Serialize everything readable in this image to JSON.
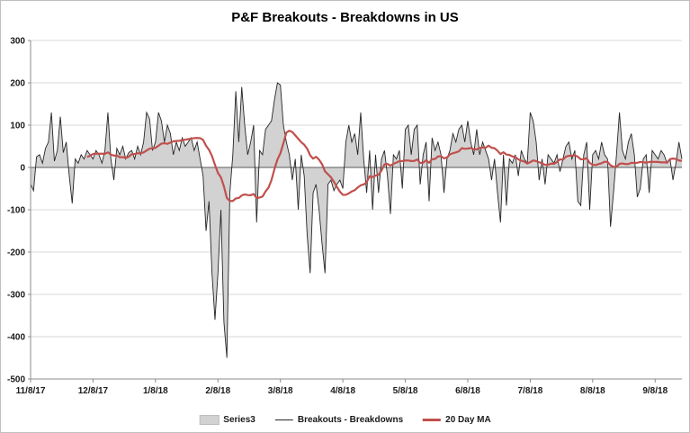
{
  "chart_data": {
    "type": "area",
    "title": "P&F Breakouts - Breakdowns in US",
    "xlabel": "",
    "ylabel": "",
    "ylim": [
      -500,
      300
    ],
    "y_ticks": [
      300,
      200,
      100,
      0,
      -100,
      -200,
      -300,
      -400,
      -500
    ],
    "grid": true,
    "legend_position": "bottom",
    "x_tick_labels": [
      "11/8/17",
      "12/8/17",
      "1/8/18",
      "2/8/18",
      "3/8/18",
      "4/8/18",
      "5/8/18",
      "6/8/18",
      "7/8/18",
      "8/8/18",
      "9/8/18"
    ],
    "x_tick_indices": [
      0,
      21,
      42,
      63,
      84,
      105,
      126,
      147,
      168,
      189,
      210
    ],
    "ma_window": 20,
    "series": [
      {
        "name": "Series3",
        "type": "area",
        "color": "#d2d2d2"
      },
      {
        "name": "Breakouts - Breakdowns",
        "type": "line",
        "color": "#262626"
      },
      {
        "name": "20 Day MA",
        "type": "line",
        "color": "#c0504d",
        "derived": "20-day moving average of Breakouts - Breakdowns"
      }
    ],
    "values": [
      -40,
      -55,
      25,
      30,
      10,
      45,
      60,
      130,
      15,
      40,
      120,
      35,
      60,
      -20,
      -85,
      20,
      10,
      30,
      20,
      40,
      30,
      20,
      40,
      30,
      10,
      40,
      130,
      20,
      -30,
      45,
      30,
      50,
      20,
      35,
      40,
      20,
      50,
      30,
      60,
      130,
      115,
      40,
      60,
      130,
      110,
      60,
      100,
      80,
      30,
      60,
      40,
      70,
      50,
      60,
      70,
      40,
      60,
      20,
      -20,
      -150,
      -80,
      -250,
      -360,
      -250,
      -100,
      -365,
      -450,
      -60,
      30,
      180,
      60,
      190,
      100,
      30,
      60,
      100,
      -130,
      40,
      30,
      90,
      100,
      110,
      160,
      200,
      195,
      100,
      60,
      30,
      -30,
      20,
      -100,
      30,
      -20,
      -160,
      -250,
      -60,
      -40,
      -100,
      -180,
      -250,
      -40,
      -30,
      -55,
      -40,
      -30,
      -50,
      60,
      100,
      60,
      80,
      30,
      130,
      20,
      -60,
      40,
      -100,
      30,
      -60,
      20,
      40,
      -20,
      -110,
      30,
      20,
      40,
      -50,
      90,
      100,
      30,
      90,
      100,
      -40,
      30,
      60,
      -80,
      70,
      40,
      60,
      30,
      -60,
      20,
      40,
      80,
      60,
      90,
      100,
      60,
      110,
      60,
      30,
      90,
      30,
      60,
      40,
      20,
      -30,
      20,
      -60,
      -130,
      30,
      -90,
      20,
      10,
      30,
      -20,
      40,
      20,
      10,
      130,
      110,
      60,
      -30,
      20,
      -40,
      30,
      20,
      10,
      30,
      -10,
      20,
      50,
      60,
      20,
      40,
      -80,
      -90,
      30,
      60,
      -100,
      30,
      40,
      20,
      60,
      30,
      20,
      -140,
      -60,
      30,
      130,
      40,
      20,
      60,
      80,
      30,
      -70,
      -50,
      20,
      30,
      -60,
      40,
      30,
      20,
      40,
      30,
      10,
      20,
      -30,
      10,
      60,
      20
    ]
  }
}
